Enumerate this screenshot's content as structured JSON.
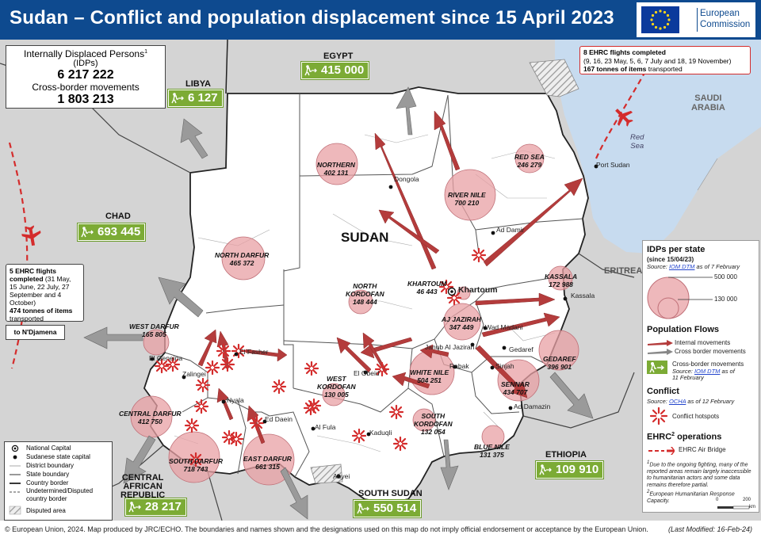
{
  "header": {
    "title": "Sudan – Conflict and population displacement since 15 April 2023",
    "logo_text_1": "European",
    "logo_text_2": "Commission"
  },
  "summary": {
    "idp_label": "Internally Displaced Persons",
    "idp_sup": "1",
    "idp_abbr": "(IDPs)",
    "idp_value": "6 217 222",
    "cross_label": "Cross-border movements",
    "cross_value": "1 803 213"
  },
  "countries": {
    "egypt": {
      "name": "EGYPT",
      "value": "415 000"
    },
    "libya": {
      "name": "LIBYA",
      "value": "6 127"
    },
    "chad": {
      "name": "CHAD",
      "value": "693 445"
    },
    "car": {
      "name_1": "CENTRAL",
      "name_2": "AFRICAN",
      "name_3": "REPUBLIC",
      "value": "28 217"
    },
    "south_sudan": {
      "name": "SOUTH SUDAN",
      "value": "550 514"
    },
    "ethiopia": {
      "name": "ETHIOPIA",
      "value": "109 910"
    },
    "eritrea": {
      "name": "ERITREA"
    },
    "saudi": {
      "name_1": "SAUDI",
      "name_2": "ARABIA"
    },
    "sudan": {
      "name": "SUDAN"
    },
    "red_sea_water": {
      "name_1": "Red",
      "name_2": "Sea"
    }
  },
  "states": [
    {
      "name": "NORTHERN",
      "value": "402 131"
    },
    {
      "name": "RIVER NILE",
      "value": "700 210"
    },
    {
      "name": "RED SEA",
      "value": "246 279"
    },
    {
      "name": "NORTH DARFUR",
      "value": "465 372"
    },
    {
      "name_1": "NORTH",
      "name_2": "KORDOFAN",
      "value": "148 444"
    },
    {
      "name": "KHARTOUM",
      "value": "46 443"
    },
    {
      "name": "KASSALA",
      "value": "172 988"
    },
    {
      "name": "AJ JAZIRAH",
      "value": "347 449"
    },
    {
      "name": "GEDAREF",
      "value": "396 901"
    },
    {
      "name": "WEST DARFUR",
      "value": "165 805"
    },
    {
      "name_1": "WEST",
      "name_2": "KORDOFAN",
      "value": "130 005"
    },
    {
      "name": "WHITE NILE",
      "value": "504 251"
    },
    {
      "name": "SENNAR",
      "value": "434 707"
    },
    {
      "name": "CENTRAL DARFUR",
      "value": "412 750"
    },
    {
      "name_1": "SOUTH",
      "name_2": "KORDOFAN",
      "value": "132 054"
    },
    {
      "name": "SOUTH DARFUR",
      "value": "718 743"
    },
    {
      "name": "EAST DARFUR",
      "value": "661 315"
    },
    {
      "name": "BLUE NILE",
      "value": "131 375"
    }
  ],
  "cities": [
    "Dongola",
    "Ad Damir",
    "Port Sudan",
    "Khartoum",
    "Kassala",
    "Wad Madani",
    "Gedaref",
    "Janub Al Jazirah",
    "Rabak",
    "Sinjah",
    "Ad Damazin",
    "El Fasher",
    "El Geneina",
    "Zalingei",
    "Nyala",
    "Ed Daein",
    "El Obeid",
    "Al Fula",
    "Kaduqli",
    "Abyei"
  ],
  "flights": {
    "east_title": "8 EHRC flights completed",
    "east_dates": "(9, 16, 23 May, 5, 6, 7 July and 18, 19 November)",
    "east_tonnes": "167 tonnes of items",
    "east_tonnes_suffix": " transported",
    "west_title": "5 EHRC flights completed",
    "west_dates": "(31 May, 15 June, 22 July, 27 September and 4 October)",
    "west_tonnes": "474 tonnes of items",
    "west_tonnes_suffix": " transported",
    "to_ndjamena": "to N'Djamena"
  },
  "legend": {
    "idps_title": "IDPs per state",
    "idps_since": "(since 15/04/23)",
    "idps_source_prefix": "Source: ",
    "idps_source_link": "IOM DTM",
    "idps_source_suffix": " as of 7 February",
    "size_large": "500 000",
    "size_small": "130 000",
    "flows_title": "Population Flows",
    "flows_internal": "Internal movements",
    "flows_cross": "Cross border movements",
    "cross_border_label": "Cross-border movements",
    "cross_source_prefix": "Source: ",
    "cross_source_link": "IOM DTM",
    "cross_source_suffix": " as of",
    "cross_source_date": "11 February",
    "conflict_title": "Conflict",
    "conflict_source_prefix": "Source: ",
    "conflict_source_link": "OCHA",
    "conflict_source_suffix": " as of 12 February",
    "conflict_hotspots": "Conflict hotspots",
    "ehrc_title": "EHRC",
    "ehrc_sup": "2",
    "ehrc_title_suffix": " operations",
    "ehrc_airbridge": "EHRC Air Bridge",
    "note1": "Due to the ongoing fighting, many of the reported areas remain largely inaccessible to humanitarian actors and some data remains therefore partial.",
    "note2": "European Humanitarian Response Capacity.",
    "scale_0": "0",
    "scale_200": "200",
    "scale_unit": "km"
  },
  "map_legend": [
    "National Capital",
    "Sudanese state capital",
    "District boundary",
    "State boundary",
    "Country border",
    "Undetermined/Disputed country border",
    "Disputed area"
  ],
  "footer": {
    "text": "© European Union, 2024. Map produced by JRC/ECHO. The boundaries and names shown and the designations used on this map do not imply official endorsement or acceptance by the European Union.",
    "modified": "(Last Modified: 16-Feb-24)"
  },
  "colors": {
    "header": "#0e4a8f",
    "badge": "#7cab35",
    "circle": "#e8a0a4",
    "arrow_internal": "#b43c3c",
    "arrow_cross": "#8c8c8c",
    "sudan": "#ffffff",
    "neighbours": "#d4d4d4",
    "water": "#c7dbef"
  }
}
